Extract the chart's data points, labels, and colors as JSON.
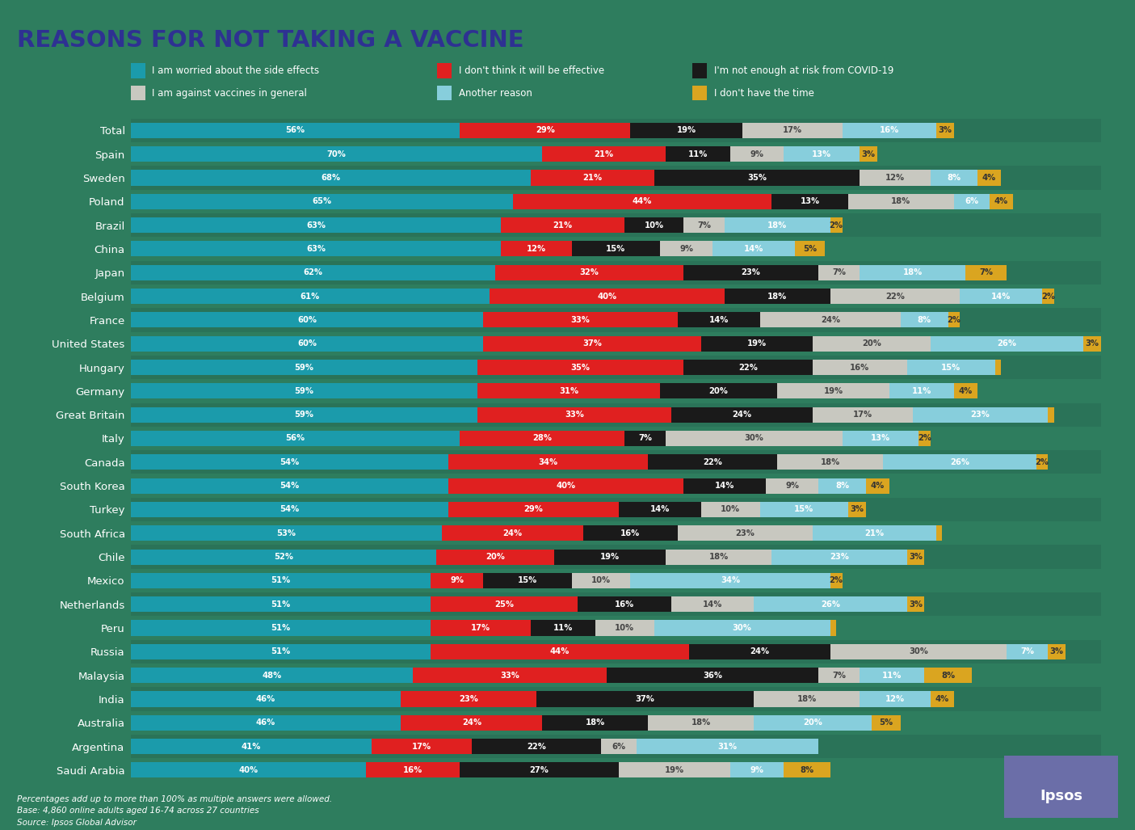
{
  "title": "REASONS FOR NOT TAKING A VACCINE",
  "title_color": "#2E3192",
  "background_color": "#2E7D5E",
  "legend": [
    {
      "label": "I am worried about the side effects",
      "color": "#1B9BAB"
    },
    {
      "label": "I don't think it will be effective",
      "color": "#E02020"
    },
    {
      "label": "I'm not enough at risk from COVID-19",
      "color": "#1A1A1A"
    },
    {
      "label": "I am against vaccines in general",
      "color": "#C8C8C0"
    },
    {
      "label": "Another reason",
      "color": "#87CEDC"
    },
    {
      "label": "I don't have the time",
      "color": "#DAA520"
    }
  ],
  "countries": [
    "Total",
    "Spain",
    "Sweden",
    "Poland",
    "Brazil",
    "China",
    "Japan",
    "Belgium",
    "France",
    "United States",
    "Hungary",
    "Germany",
    "Great Britain",
    "Italy",
    "Canada",
    "South Korea",
    "Turkey",
    "South Africa",
    "Chile",
    "Mexico",
    "Netherlands",
    "Peru",
    "Russia",
    "Malaysia",
    "India",
    "Australia",
    "Argentina",
    "Saudi Arabia"
  ],
  "data": {
    "Total": [
      56,
      29,
      19,
      17,
      16,
      3
    ],
    "Spain": [
      70,
      21,
      11,
      9,
      13,
      3
    ],
    "Sweden": [
      68,
      21,
      35,
      12,
      8,
      4
    ],
    "Poland": [
      65,
      44,
      13,
      18,
      6,
      4
    ],
    "Brazil": [
      63,
      21,
      10,
      7,
      18,
      2
    ],
    "China": [
      63,
      12,
      15,
      9,
      14,
      5
    ],
    "Japan": [
      62,
      32,
      23,
      7,
      18,
      7
    ],
    "Belgium": [
      61,
      40,
      18,
      22,
      14,
      2
    ],
    "France": [
      60,
      33,
      14,
      24,
      8,
      2
    ],
    "United States": [
      60,
      37,
      19,
      20,
      26,
      3
    ],
    "Hungary": [
      59,
      35,
      22,
      16,
      15,
      1
    ],
    "Germany": [
      59,
      31,
      20,
      19,
      11,
      4
    ],
    "Great Britain": [
      59,
      33,
      24,
      17,
      23,
      1
    ],
    "Italy": [
      56,
      28,
      7,
      30,
      13,
      2
    ],
    "Canada": [
      54,
      34,
      22,
      18,
      26,
      2
    ],
    "South Korea": [
      54,
      40,
      14,
      9,
      8,
      4
    ],
    "Turkey": [
      54,
      29,
      14,
      10,
      15,
      3
    ],
    "South Africa": [
      53,
      24,
      16,
      23,
      21,
      1
    ],
    "Chile": [
      52,
      20,
      19,
      18,
      23,
      3
    ],
    "Mexico": [
      51,
      9,
      15,
      10,
      34,
      2
    ],
    "Netherlands": [
      51,
      25,
      16,
      14,
      26,
      3
    ],
    "Peru": [
      51,
      17,
      11,
      10,
      30,
      1
    ],
    "Russia": [
      51,
      44,
      24,
      30,
      7,
      3
    ],
    "Malaysia": [
      48,
      33,
      36,
      7,
      11,
      8
    ],
    "India": [
      46,
      23,
      37,
      18,
      12,
      4
    ],
    "Australia": [
      46,
      24,
      18,
      18,
      20,
      5
    ],
    "Argentina": [
      41,
      17,
      22,
      6,
      31,
      0
    ],
    "Saudi Arabia": [
      40,
      16,
      27,
      19,
      9,
      8
    ]
  },
  "colors": [
    "#1B9BAB",
    "#E02020",
    "#1A1A1A",
    "#C8C8C0",
    "#87CEDC",
    "#DAA520"
  ],
  "footnote1": "Percentages add up to more than 100% as multiple answers were allowed.",
  "footnote2": "Base: 4,860 online adults aged 16-74 across 27 countries",
  "footnote3": "Source: Ipsos Global Advisor"
}
